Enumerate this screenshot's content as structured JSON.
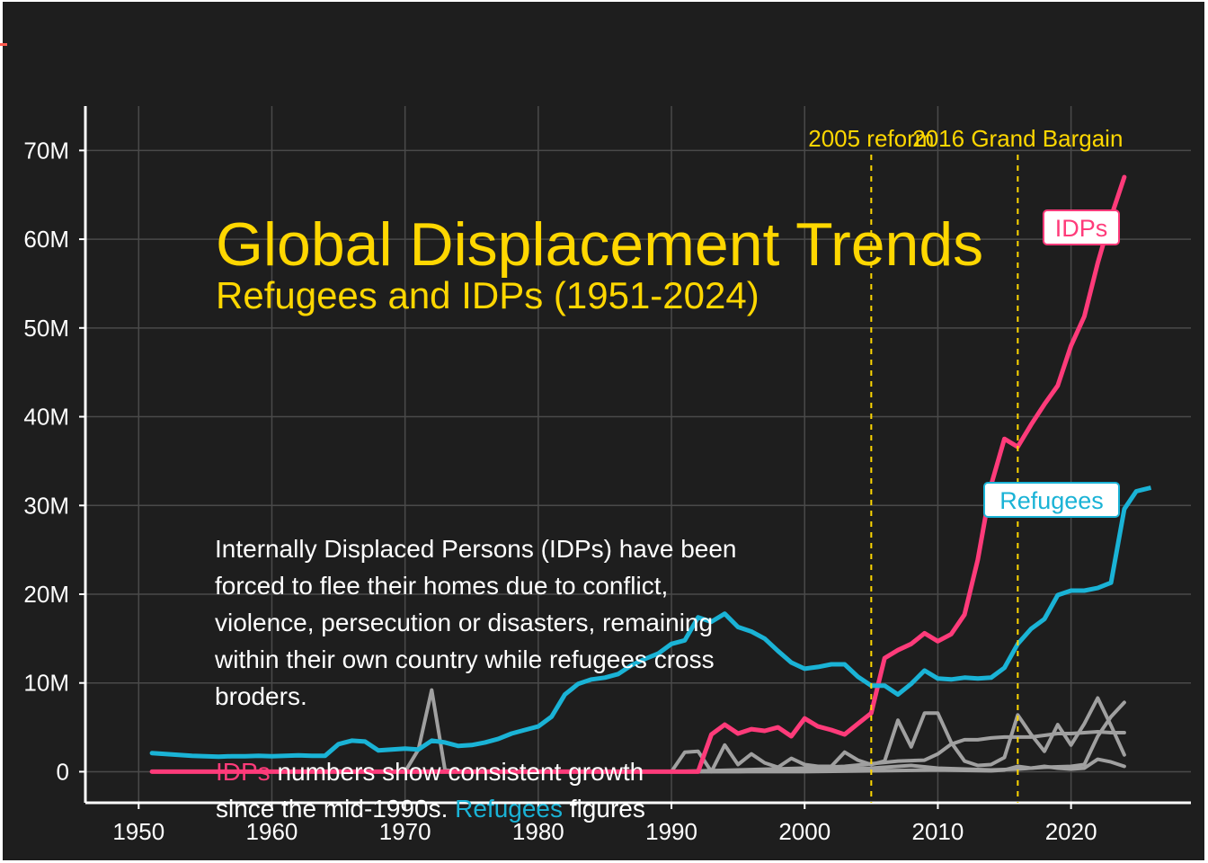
{
  "chart_data": {
    "type": "line",
    "title": "Global Displacement Trends",
    "subtitle": "Refugees and IDPs (1951-2024)",
    "description": "Internally Displaced Persons (IDPs) have been forced to flee their homes due to conflict, violence, persecution or disasters, remaining within their own country while refugees cross broders.",
    "note": {
      "idps_word": "IDPs",
      "line1_rest": " numbers show consistent growth",
      "line2_start": "since the mid-1990s. ",
      "refugees_word": "Refugees",
      "line2_end": " figures"
    },
    "xlim": [
      1946,
      2029
    ],
    "ylim": [
      -3500000,
      75000000
    ],
    "x_ticks": [
      1950,
      1960,
      1970,
      1980,
      1990,
      2000,
      2010,
      2020
    ],
    "y_ticks": [
      {
        "value": 0,
        "label": "0"
      },
      {
        "value": 10000000,
        "label": "10M"
      },
      {
        "value": 20000000,
        "label": "20M"
      },
      {
        "value": 30000000,
        "label": "30M"
      },
      {
        "value": 40000000,
        "label": "40M"
      },
      {
        "value": 50000000,
        "label": "50M"
      },
      {
        "value": 60000000,
        "label": "60M"
      },
      {
        "value": 70000000,
        "label": "70M"
      }
    ],
    "grid": true,
    "legend": "none",
    "vlines": [
      {
        "x": 2005,
        "label": "2005 reform"
      },
      {
        "x": 2016,
        "label": "2016 Grand Bargain"
      }
    ],
    "colors": {
      "idps": "#ff3b7a",
      "refugees": "#1ab3d6",
      "other": "#a0a0a0",
      "accent": "#ffd700",
      "background": "#1e1e1e",
      "grid": "#4a4a4a"
    },
    "series": [
      {
        "name": "IDPs",
        "label": "IDPs",
        "color": "#ff3b7a",
        "x": [
          1951,
          1992,
          1993,
          1994,
          1995,
          1996,
          1997,
          1998,
          1999,
          2000,
          2001,
          2002,
          2003,
          2004,
          2005,
          2006,
          2007,
          2008,
          2009,
          2010,
          2011,
          2012,
          2013,
          2014,
          2015,
          2016,
          2017,
          2018,
          2019,
          2020,
          2021,
          2022,
          2023,
          2024
        ],
        "y": [
          0,
          0,
          4200000,
          5300000,
          4300000,
          4800000,
          4600000,
          5000000,
          4000000,
          6000000,
          5100000,
          4700000,
          4200000,
          5400000,
          6600000,
          12800000,
          13700000,
          14400000,
          15600000,
          14700000,
          15500000,
          17700000,
          23900000,
          32300000,
          37500000,
          36600000,
          39100000,
          41400000,
          43500000,
          48000000,
          51300000,
          57300000,
          62500000,
          67000000
        ]
      },
      {
        "name": "Refugees",
        "label": "Refugees",
        "color": "#1ab3d6",
        "x": [
          1951,
          1952,
          1953,
          1954,
          1955,
          1956,
          1957,
          1958,
          1959,
          1960,
          1961,
          1962,
          1963,
          1964,
          1965,
          1966,
          1967,
          1968,
          1969,
          1970,
          1971,
          1972,
          1973,
          1974,
          1975,
          1976,
          1977,
          1978,
          1979,
          1980,
          1981,
          1982,
          1983,
          1984,
          1985,
          1986,
          1987,
          1988,
          1989,
          1990,
          1991,
          1992,
          1993,
          1994,
          1995,
          1996,
          1997,
          1998,
          1999,
          2000,
          2001,
          2002,
          2003,
          2004,
          2005,
          2006,
          2007,
          2008,
          2009,
          2010,
          2011,
          2012,
          2013,
          2014,
          2015,
          2016,
          2017,
          2018,
          2019,
          2020,
          2021,
          2022,
          2023,
          2024
        ],
        "y": [
          2100000,
          2000000,
          1900000,
          1800000,
          1750000,
          1700000,
          1750000,
          1750000,
          1800000,
          1750000,
          1800000,
          1850000,
          1800000,
          1800000,
          3100000,
          3500000,
          3400000,
          2400000,
          2500000,
          2600000,
          2500000,
          3500000,
          3300000,
          2900000,
          3000000,
          3300000,
          3700000,
          4300000,
          4700000,
          5100000,
          6200000,
          8700000,
          9900000,
          10400000,
          10600000,
          11000000,
          12000000,
          12700000,
          13300000,
          14400000,
          14800000,
          17400000,
          16900000,
          17800000,
          16300000,
          15800000,
          15000000,
          13600000,
          12300000,
          11600000,
          11800000,
          12100000,
          12100000,
          10700000,
          9700000,
          9700000,
          8700000,
          9900000,
          11400000,
          10500000,
          10400000,
          10600000,
          10500000,
          10600000,
          11700000,
          14400000,
          16100000,
          17200000,
          19900000,
          20400000,
          20400000,
          20700000,
          21300000,
          29600000
        ],
        "end_y": 32000000
      },
      {
        "name": "",
        "color": "#a0a0a0",
        "x": [
          1951,
          1970,
          1971,
          1972,
          1973,
          1974,
          1990,
          1991,
          1992,
          1993,
          1994,
          1995,
          1996,
          1997,
          1998,
          1999,
          2000,
          2001,
          2002,
          2003,
          2004,
          2005,
          2006,
          2007,
          2008,
          2009,
          2010,
          2011,
          2012,
          2013,
          2014,
          2015,
          2016,
          2017,
          2018,
          2019,
          2020,
          2021,
          2022,
          2023,
          2024
        ],
        "y": [
          0,
          0,
          2500000,
          9200000,
          200000,
          0,
          0,
          2200000,
          2300000,
          0,
          3000000,
          800000,
          2000000,
          1000000,
          500000,
          1500000,
          800000,
          600000,
          600000,
          2200000,
          1300000,
          800000,
          1200000,
          5800000,
          2800000,
          6600000,
          6600000,
          3300000,
          1200000,
          700000,
          800000,
          1600000,
          6400000,
          4200000,
          2300000,
          5300000,
          3000000,
          5400000,
          8300000,
          5200000,
          1900000
        ]
      },
      {
        "name": "",
        "color": "#a0a0a0",
        "x": [
          1951,
          1990,
          1995,
          2000,
          2003,
          2005,
          2007,
          2009,
          2010,
          2011,
          2012,
          2013,
          2014,
          2015,
          2016,
          2017,
          2018,
          2019,
          2020,
          2021,
          2022,
          2023,
          2024
        ],
        "y": [
          0,
          0,
          200000,
          400000,
          600000,
          900000,
          1200000,
          1300000,
          2000000,
          3100000,
          3600000,
          3600000,
          3800000,
          3900000,
          3900000,
          3900000,
          4100000,
          4300000,
          4300000,
          4400000,
          4500000,
          4400000,
          4400000
        ]
      },
      {
        "name": "",
        "color": "#a0a0a0",
        "x": [
          1951,
          1995,
          2000,
          2005,
          2008,
          2010,
          2012,
          2014,
          2016,
          2018,
          2020,
          2021,
          2022,
          2023,
          2024
        ],
        "y": [
          0,
          0,
          300000,
          400000,
          700000,
          400000,
          300000,
          200000,
          300000,
          500000,
          600000,
          800000,
          4000000,
          6200000,
          7800000
        ]
      },
      {
        "name": "",
        "color": "#a0a0a0",
        "x": [
          1951,
          2000,
          2005,
          2010,
          2014,
          2015,
          2016,
          2017,
          2018,
          2019,
          2020,
          2021,
          2022,
          2023,
          2024
        ],
        "y": [
          0,
          0,
          100000,
          200000,
          100000,
          200000,
          600000,
          400000,
          600000,
          400000,
          300000,
          400000,
          1400000,
          1100000,
          600000
        ]
      }
    ]
  }
}
